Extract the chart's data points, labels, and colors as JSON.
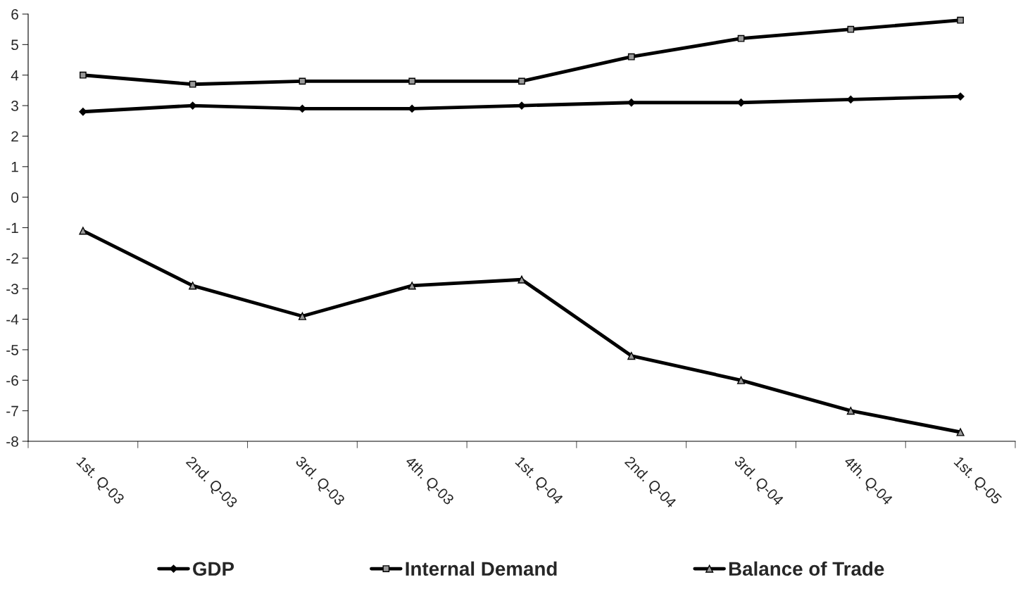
{
  "chart_data": {
    "type": "line",
    "categories": [
      "1st. Q-03",
      "2nd. Q-03",
      "3rd. Q-03",
      "4th. Q-03",
      "1st. Q-04",
      "2nd. Q-04",
      "3rd. Q-04",
      "4th. Q-04",
      "1st. Q-05"
    ],
    "series": [
      {
        "name": "GDP",
        "color": "#000000",
        "marker": "diamond",
        "values": [
          2.8,
          3.0,
          2.9,
          2.9,
          3.0,
          3.1,
          3.1,
          3.2,
          3.3
        ]
      },
      {
        "name": "Internal Demand",
        "color": "#000000",
        "marker": "square",
        "values": [
          4.0,
          3.7,
          3.8,
          3.8,
          3.8,
          4.6,
          5.2,
          5.5,
          5.8
        ]
      },
      {
        "name": "Balance of Trade",
        "color": "#000000",
        "marker": "triangle",
        "values": [
          -1.1,
          -2.9,
          -3.9,
          -2.9,
          -2.7,
          -5.2,
          -6.0,
          -7.0,
          -7.7
        ]
      }
    ],
    "ylim": [
      -8,
      6
    ],
    "yticks": [
      -8,
      -7,
      -6,
      -5,
      -4,
      -3,
      -2,
      -1,
      0,
      1,
      2,
      3,
      4,
      5,
      6
    ],
    "grid": false,
    "legend": "bottom",
    "line_style": "solid"
  }
}
